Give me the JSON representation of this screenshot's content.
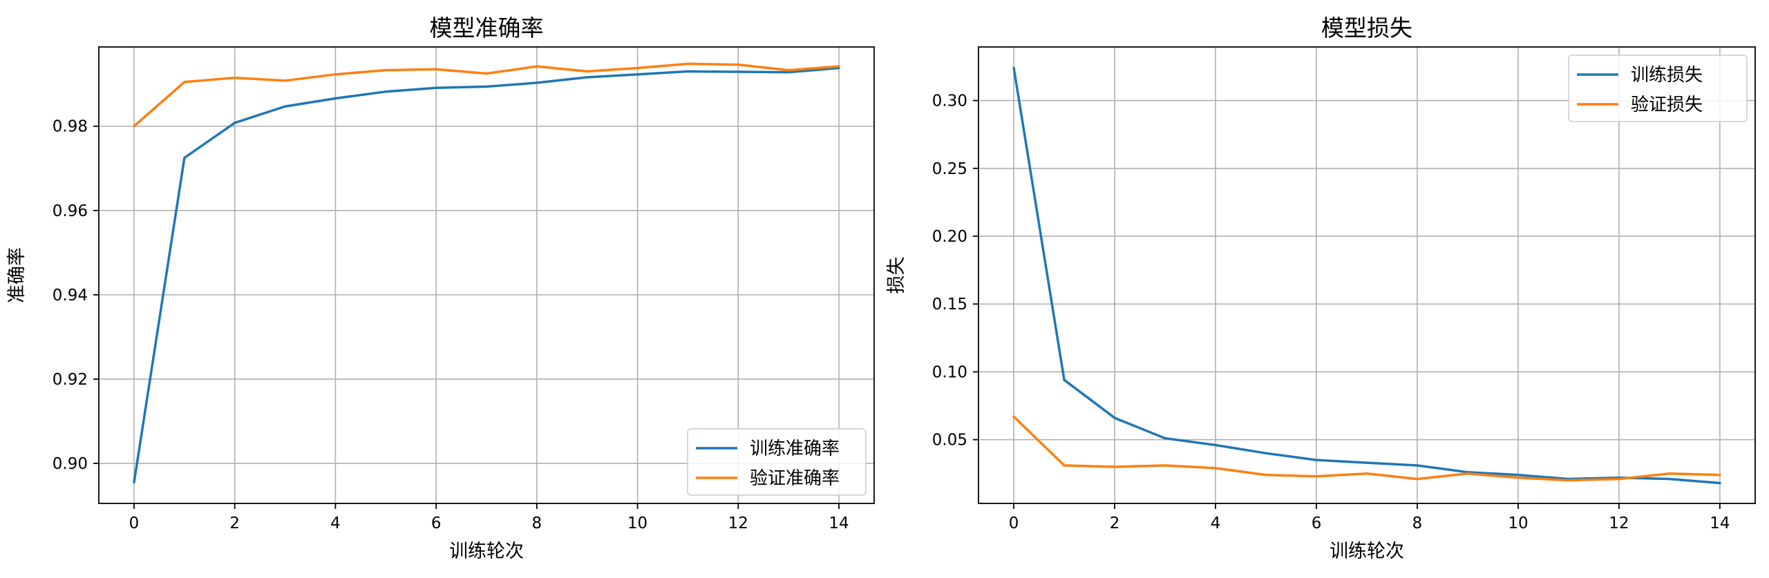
{
  "chart_data": [
    {
      "type": "line",
      "title": "模型准确率",
      "xlabel": "训练轮次",
      "ylabel": "准确率",
      "x": [
        0,
        1,
        2,
        3,
        4,
        5,
        6,
        7,
        8,
        9,
        10,
        11,
        12,
        13,
        14
      ],
      "xlim": [
        -0.7,
        14.7
      ],
      "ylim": [
        0.8905,
        0.9988
      ],
      "xticks": [
        0,
        2,
        4,
        6,
        8,
        10,
        12,
        14
      ],
      "yticks": [
        0.9,
        0.92,
        0.94,
        0.96,
        0.98
      ],
      "ytick_labels": [
        "0.90",
        "0.92",
        "0.94",
        "0.96",
        "0.98"
      ],
      "grid": true,
      "legend_position": "lower-right",
      "series": [
        {
          "name": "训练准确率",
          "color": "#1f77b4",
          "values": [
            0.8955,
            0.9725,
            0.9808,
            0.9847,
            0.9866,
            0.9882,
            0.9891,
            0.9894,
            0.9903,
            0.9916,
            0.9923,
            0.993,
            0.9929,
            0.9928,
            0.9938
          ]
        },
        {
          "name": "验证准确率",
          "color": "#ff7f0e",
          "values": [
            0.98,
            0.9905,
            0.9915,
            0.9908,
            0.9923,
            0.9933,
            0.9935,
            0.9925,
            0.9942,
            0.993,
            0.9938,
            0.9948,
            0.9946,
            0.9933,
            0.9942
          ]
        }
      ]
    },
    {
      "type": "line",
      "title": "模型损失",
      "xlabel": "训练轮次",
      "ylabel": "损失",
      "x": [
        0,
        1,
        2,
        3,
        4,
        5,
        6,
        7,
        8,
        9,
        10,
        11,
        12,
        13,
        14
      ],
      "xlim": [
        -0.7,
        14.7
      ],
      "ylim": [
        0.003,
        0.3395
      ],
      "xticks": [
        0,
        2,
        4,
        6,
        8,
        10,
        12,
        14
      ],
      "yticks": [
        0.05,
        0.1,
        0.15,
        0.2,
        0.25,
        0.3
      ],
      "ytick_labels": [
        "0.05",
        "0.10",
        "0.15",
        "0.20",
        "0.25",
        "0.30"
      ],
      "grid": true,
      "legend_position": "upper-right",
      "series": [
        {
          "name": "训练损失",
          "color": "#1f77b4",
          "values": [
            0.324,
            0.094,
            0.066,
            0.051,
            0.046,
            0.04,
            0.035,
            0.033,
            0.031,
            0.026,
            0.024,
            0.021,
            0.022,
            0.021,
            0.018
          ]
        },
        {
          "name": "验证损失",
          "color": "#ff7f0e",
          "values": [
            0.067,
            0.031,
            0.03,
            0.031,
            0.029,
            0.024,
            0.023,
            0.025,
            0.021,
            0.025,
            0.022,
            0.02,
            0.021,
            0.025,
            0.024
          ]
        }
      ]
    }
  ]
}
